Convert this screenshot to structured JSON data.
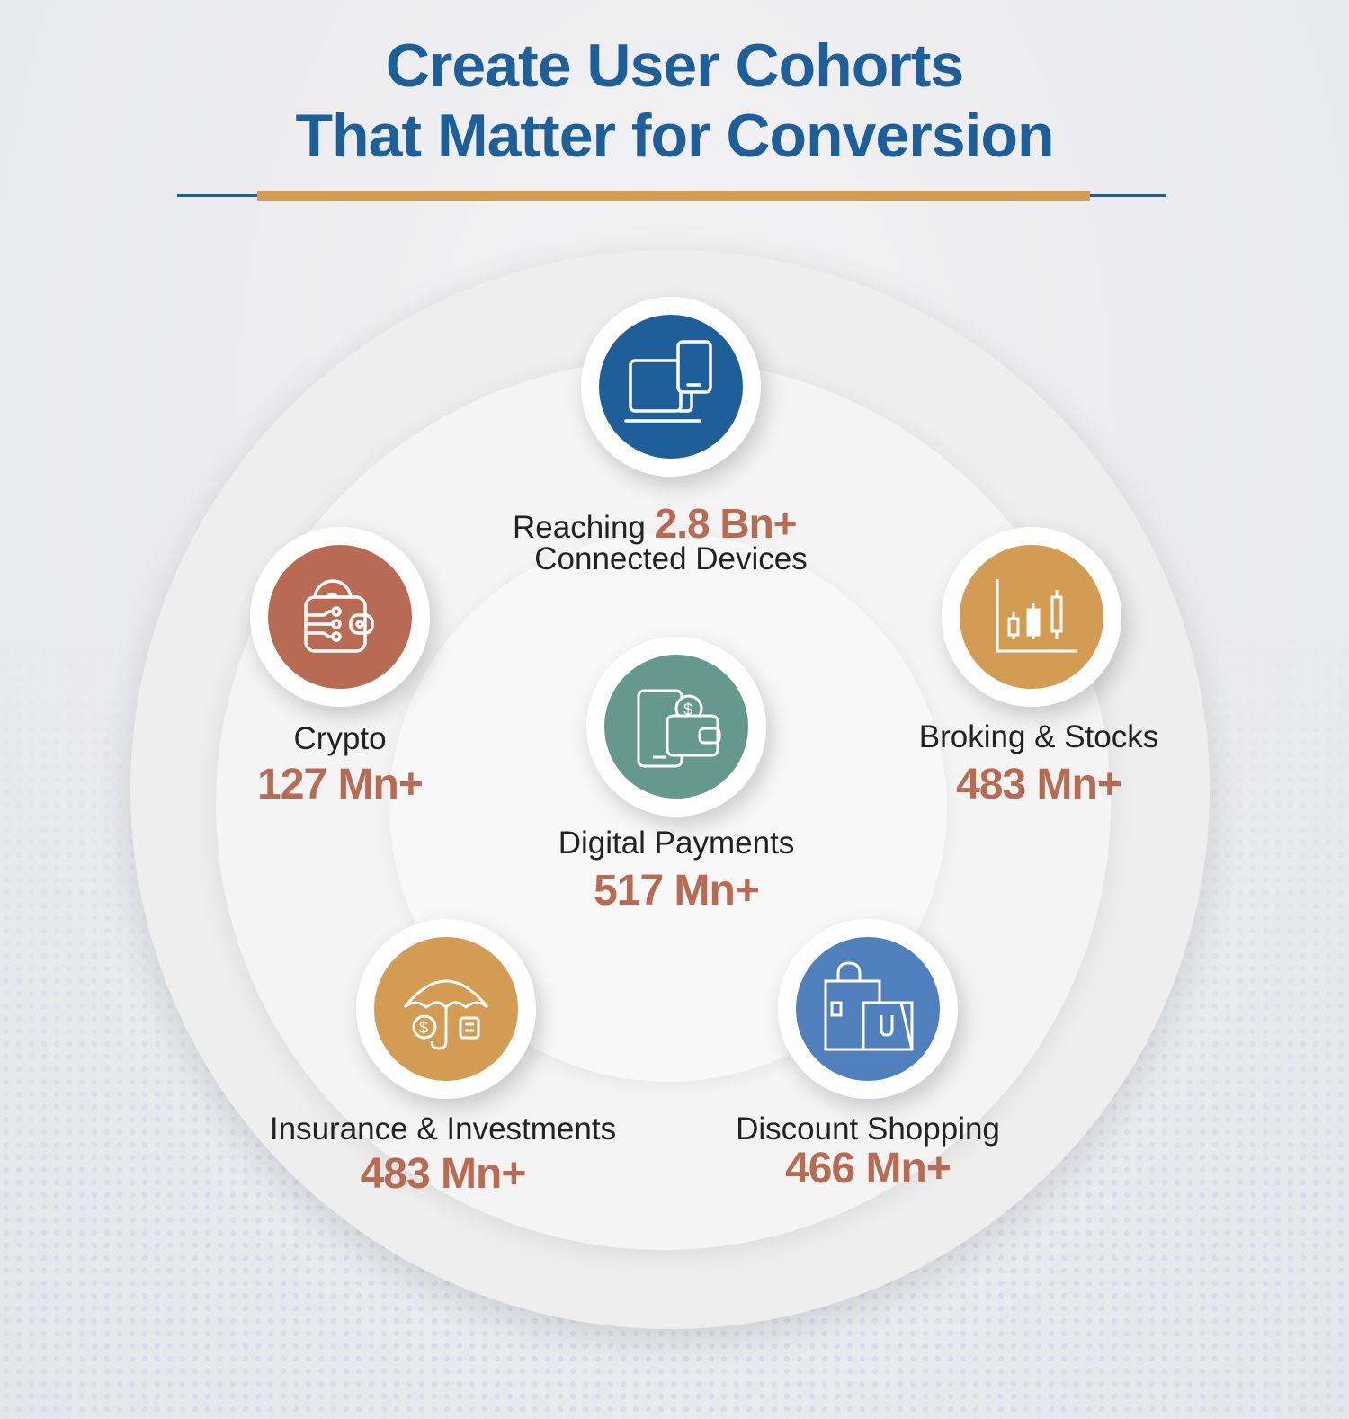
{
  "title": {
    "line1": "Create User Cohorts",
    "line2": "That Matter for Conversion"
  },
  "colors": {
    "title": "#1d5f9a",
    "accent": "#d49b52",
    "value": "#b96a52"
  },
  "center": {
    "prefix": "Reaching",
    "value": "2.8 Bn+",
    "label": "Connected Devices",
    "icon": "devices-icon",
    "color": "#1e5f9a"
  },
  "cohorts": [
    {
      "label": "Crypto",
      "value": "127 Mn+",
      "icon": "crypto-wallet-icon",
      "color": "#b96a52"
    },
    {
      "label": "Broking & Stocks",
      "value": "483 Mn+",
      "icon": "candlestick-chart-icon",
      "color": "#d49b52"
    },
    {
      "label": "Digital Payments",
      "value": "517 Mn+",
      "icon": "phone-wallet-icon",
      "color": "#66998e"
    },
    {
      "label": "Insurance & Investments",
      "value": "483 Mn+",
      "icon": "umbrella-icon",
      "color": "#d49b52"
    },
    {
      "label": "Discount Shopping",
      "value": "466 Mn+",
      "icon": "shopping-bags-icon",
      "color": "#4f7fbd"
    }
  ]
}
